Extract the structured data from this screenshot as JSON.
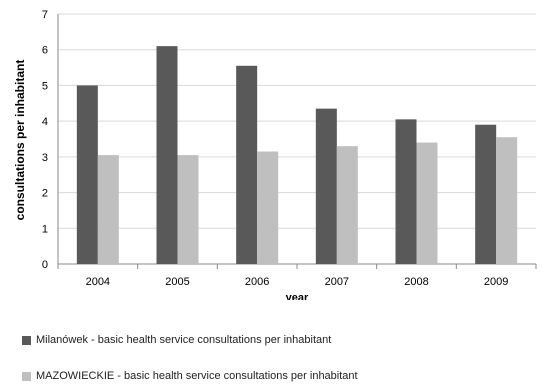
{
  "chart_data": {
    "type": "bar",
    "categories": [
      "2004",
      "2005",
      "2006",
      "2007",
      "2008",
      "2009"
    ],
    "series": [
      {
        "name": "Milanówek - basic health service consultations per inhabitant",
        "values": [
          5.0,
          6.1,
          5.55,
          4.35,
          4.05,
          3.9
        ],
        "color": "#595959"
      },
      {
        "name": "MAZOWIECKIE - basic health service consultations per inhabitant",
        "values": [
          3.05,
          3.05,
          3.15,
          3.3,
          3.4,
          3.55
        ],
        "color": "#bfbfbf"
      }
    ],
    "y_ticks": [
      "0",
      "1",
      "2",
      "3",
      "4",
      "5",
      "6",
      "7"
    ],
    "xlabel": "year",
    "ylabel": "consultations per inhabitant",
    "ylim": [
      0,
      7
    ],
    "grid": true,
    "legend_position": "bottom-left"
  },
  "legend": [
    {
      "label": "Milanówek - basic health service consultations per inhabitant",
      "color": "#595959"
    },
    {
      "label": "MAZOWIECKIE - basic health service consultations per inhabitant",
      "color": "#bfbfbf"
    }
  ]
}
